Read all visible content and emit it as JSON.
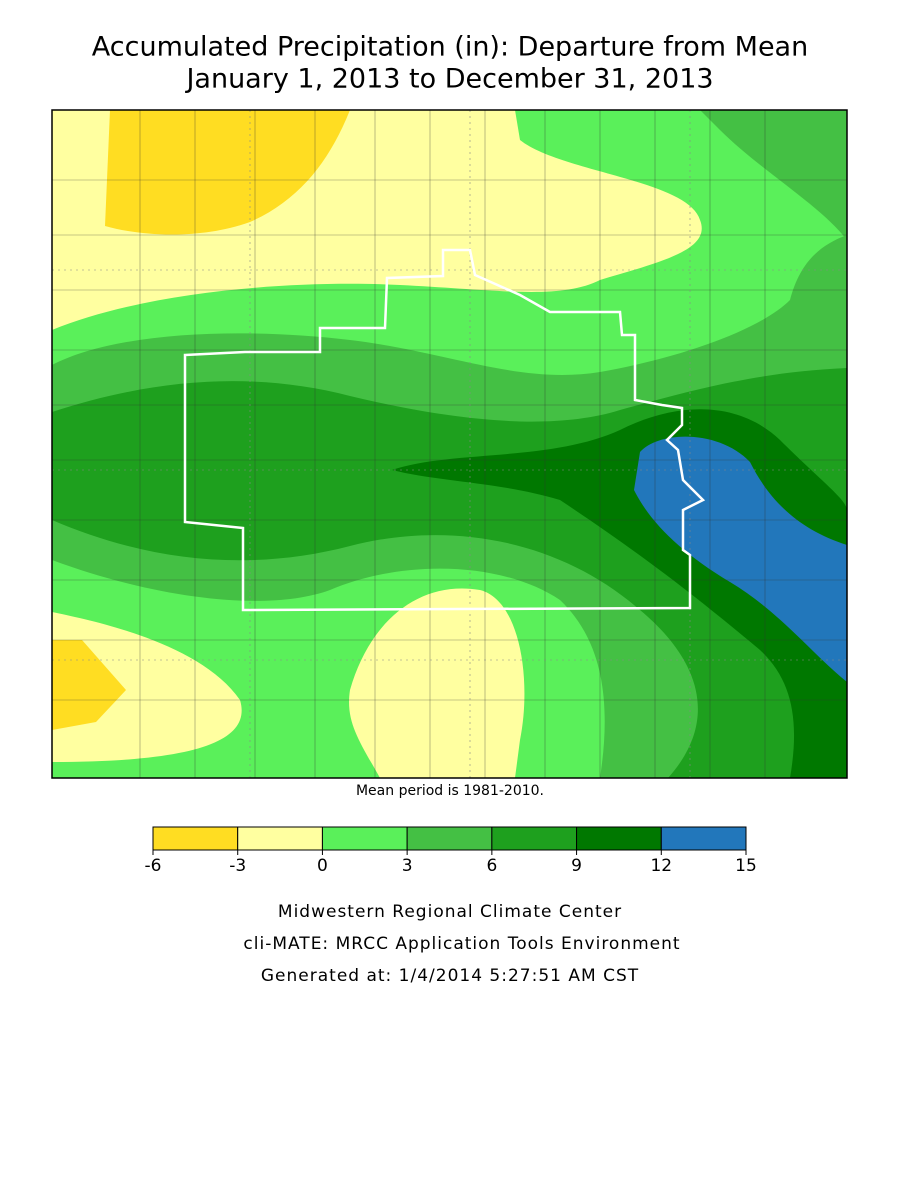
{
  "title": [
    "Accumulated Precipitation (in): Departure from Mean",
    "January 1, 2013 to December 31, 2013"
  ],
  "note": "Mean period is 1981-2010.",
  "legend": {
    "bins": [
      -6,
      -3,
      0,
      3,
      6,
      9,
      12,
      15
    ],
    "colors": [
      "#ffdd22",
      "#ffffa0",
      "#5af05a",
      "#44c044",
      "#1ea01e",
      "#007800",
      "#2277bb"
    ]
  },
  "footer": [
    "Midwestern Regional Climate Center",
    "cli-MATE: MRCC Application Tools Environment",
    "Generated at: 1/4/2014 5:27:51 AM CST"
  ]
}
